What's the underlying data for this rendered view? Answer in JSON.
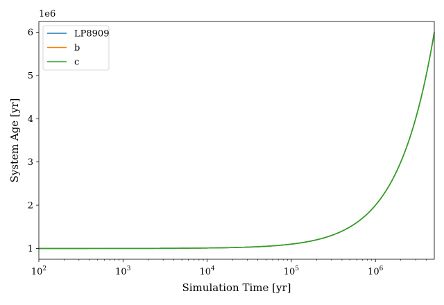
{
  "chart_data": {
    "type": "line",
    "xlabel": "Simulation Time [yr]",
    "ylabel": "System Age [yr]",
    "x_scale": "log",
    "xlim": [
      100,
      5000000
    ],
    "ylim": [
      0.75,
      6.25
    ],
    "y_offset_label": "1e6",
    "y_multiplier": 1000000,
    "x_ticks": [
      {
        "value": 100,
        "base": "10",
        "exp": "2"
      },
      {
        "value": 1000,
        "base": "10",
        "exp": "3"
      },
      {
        "value": 10000,
        "base": "10",
        "exp": "4"
      },
      {
        "value": 100000,
        "base": "10",
        "exp": "5"
      },
      {
        "value": 1000000,
        "base": "10",
        "exp": "6"
      }
    ],
    "y_ticks": [
      {
        "value": 1,
        "label": "1"
      },
      {
        "value": 2,
        "label": "2"
      },
      {
        "value": 3,
        "label": "3"
      },
      {
        "value": 4,
        "label": "4"
      },
      {
        "value": 5,
        "label": "5"
      },
      {
        "value": 6,
        "label": "6"
      }
    ],
    "grid": false,
    "legend_position": "top-left",
    "series": [
      {
        "name": "LP8909",
        "color": "#1f77b4",
        "start_age": 1000000
      },
      {
        "name": "b",
        "color": "#ff7f0e",
        "start_age": 1000000
      },
      {
        "name": "c",
        "color": "#2ca02c",
        "start_age": 1000000
      }
    ]
  }
}
